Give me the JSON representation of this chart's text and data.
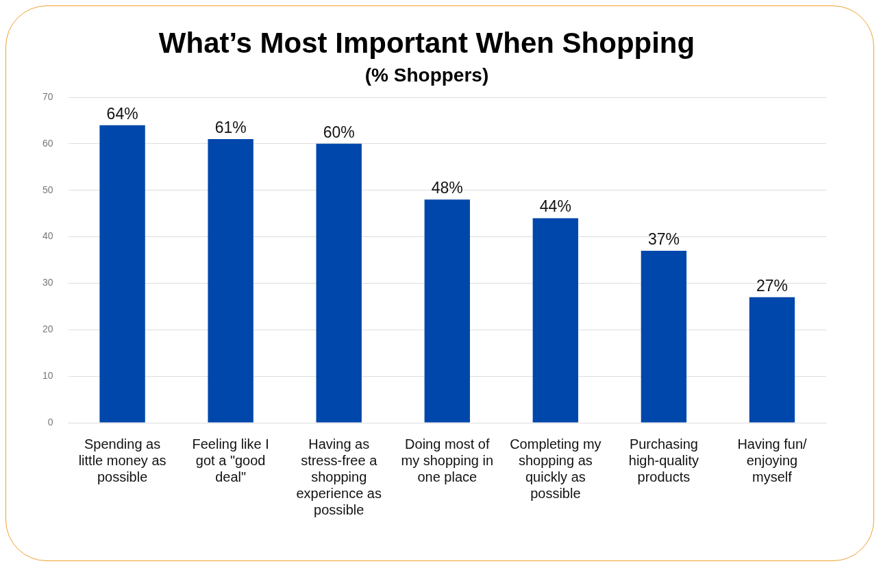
{
  "chart_data": {
    "type": "bar",
    "title": "What’s Most Important When Shopping",
    "subtitle": "(% Shoppers)",
    "categories": [
      "Spending as little money as possible",
      "Feeling like I got a \"good deal\"",
      "Having as stress-free a shopping experience as possible",
      "Doing most of my shopping in one place",
      "Completing my shopping as quickly as possible",
      "Purchasing high-quality products",
      "Having fun/ enjoying myself"
    ],
    "values": [
      64,
      61,
      60,
      48,
      44,
      37,
      27
    ],
    "value_labels": [
      "64%",
      "61%",
      "60%",
      "48%",
      "44%",
      "37%",
      "27%"
    ],
    "color": "#0047ab",
    "ylim": [
      0,
      70
    ],
    "yticks": [
      0,
      10,
      20,
      30,
      40,
      50,
      60,
      70
    ],
    "grid": "y",
    "legend": false
  }
}
